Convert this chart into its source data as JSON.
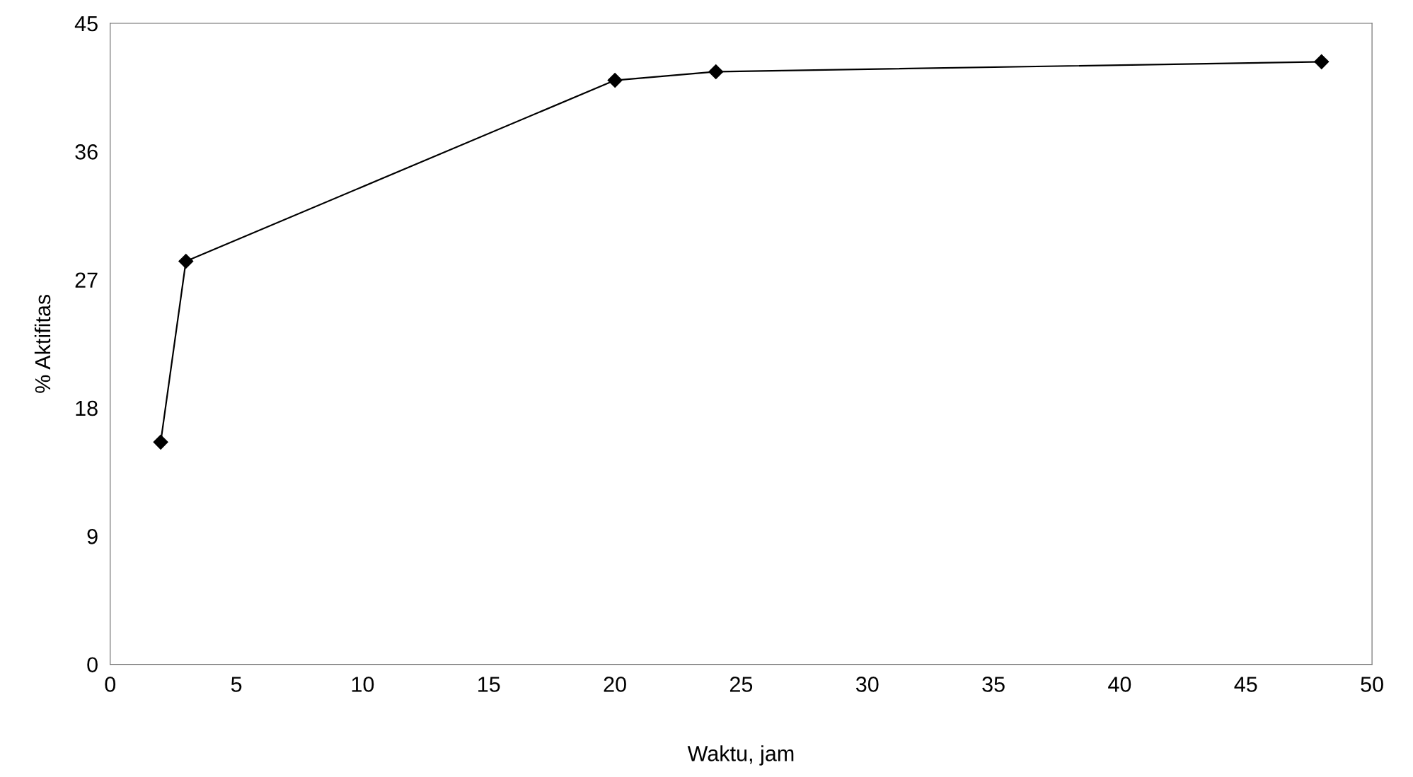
{
  "chart_data": {
    "type": "line",
    "xlabel": "Waktu, jam",
    "ylabel": "% Aktifitas",
    "x": [
      2,
      3,
      20,
      24,
      48
    ],
    "series": [
      {
        "color": "#000000",
        "values": [
          15.6,
          28.3,
          41.0,
          41.6,
          42.3
        ]
      }
    ],
    "xlim": [
      0,
      50
    ],
    "xticks": [
      0,
      5,
      10,
      15,
      20,
      25,
      30,
      35,
      40,
      45,
      50
    ],
    "ylim": [
      0,
      45
    ],
    "yticks": [
      0,
      9,
      18,
      27,
      36,
      45
    ],
    "grid": false,
    "legend": false,
    "marker": "diamond",
    "line_style": "solid"
  }
}
